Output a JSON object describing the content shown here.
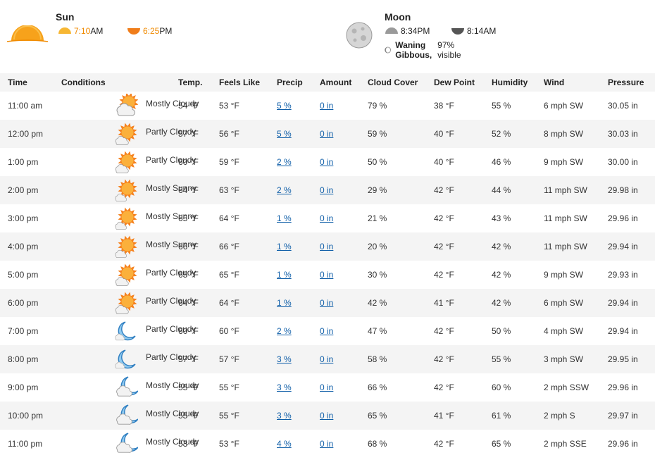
{
  "sun": {
    "title": "Sun",
    "rise_time": "7:10",
    "rise_ampm": "AM",
    "set_time": "6:25",
    "set_ampm": "PM",
    "icon": "sun-icon"
  },
  "moon": {
    "title": "Moon",
    "rise": "8:34PM",
    "set": "8:14AM",
    "phase_name": "Waning Gibbous,",
    "phase_visible": "97% visible",
    "icon": "moon-icon"
  },
  "colors": {
    "sun_orange": "#f08a00",
    "link_blue": "#0f5ea8",
    "row_alt": "#f4f4f4",
    "moon_blue": "#5aa9e6"
  },
  "table": {
    "headers": [
      "Time",
      "Conditions",
      "Temp.",
      "Feels Like",
      "Precip",
      "Amount",
      "Cloud Cover",
      "Dew Point",
      "Humidity",
      "Wind",
      "Pressure"
    ],
    "rows": [
      {
        "time": "11:00 am",
        "icon": "cloudy-sun-icon",
        "cond": "Mostly Cloudy",
        "temp": "54 °F",
        "feels": "53 °F",
        "precip": "5 %",
        "amount": "0 in",
        "cloud": "79 %",
        "dew": "38 °F",
        "hum": "55 %",
        "wind": "6 mph SW",
        "press": "30.05 in"
      },
      {
        "time": "12:00 pm",
        "icon": "partly-sunny-icon",
        "cond": "Partly Cloudy",
        "temp": "57 °F",
        "feels": "56 °F",
        "precip": "5 %",
        "amount": "0 in",
        "cloud": "59 %",
        "dew": "40 °F",
        "hum": "52 %",
        "wind": "8 mph SW",
        "press": "30.03 in"
      },
      {
        "time": "1:00 pm",
        "icon": "partly-sunny-icon",
        "cond": "Partly Cloudy",
        "temp": "60 °F",
        "feels": "59 °F",
        "precip": "2 %",
        "amount": "0 in",
        "cloud": "50 %",
        "dew": "40 °F",
        "hum": "46 %",
        "wind": "9 mph SW",
        "press": "30.00 in"
      },
      {
        "time": "2:00 pm",
        "icon": "mostly-sunny-icon",
        "cond": "Mostly Sunny",
        "temp": "64 °F",
        "feels": "63 °F",
        "precip": "2 %",
        "amount": "0 in",
        "cloud": "29 %",
        "dew": "42 °F",
        "hum": "44 %",
        "wind": "11 mph SW",
        "press": "29.98 in"
      },
      {
        "time": "3:00 pm",
        "icon": "mostly-sunny-icon",
        "cond": "Mostly Sunny",
        "temp": "65 °F",
        "feels": "64 °F",
        "precip": "1 %",
        "amount": "0 in",
        "cloud": "21 %",
        "dew": "42 °F",
        "hum": "43 %",
        "wind": "11 mph SW",
        "press": "29.96 in"
      },
      {
        "time": "4:00 pm",
        "icon": "mostly-sunny-icon",
        "cond": "Mostly Sunny",
        "temp": "66 °F",
        "feels": "66 °F",
        "precip": "1 %",
        "amount": "0 in",
        "cloud": "20 %",
        "dew": "42 °F",
        "hum": "42 %",
        "wind": "11 mph SW",
        "press": "29.94 in"
      },
      {
        "time": "5:00 pm",
        "icon": "partly-sunny-icon",
        "cond": "Partly Cloudy",
        "temp": "65 °F",
        "feels": "65 °F",
        "precip": "1 %",
        "amount": "0 in",
        "cloud": "30 %",
        "dew": "42 °F",
        "hum": "42 %",
        "wind": "9 mph SW",
        "press": "29.93 in"
      },
      {
        "time": "6:00 pm",
        "icon": "partly-sunny-icon",
        "cond": "Partly Cloudy",
        "temp": "64 °F",
        "feels": "64 °F",
        "precip": "1 %",
        "amount": "0 in",
        "cloud": "42 %",
        "dew": "41 °F",
        "hum": "42 %",
        "wind": "6 mph SW",
        "press": "29.94 in"
      },
      {
        "time": "7:00 pm",
        "icon": "partly-cloudy-night-icon",
        "cond": "Partly Cloudy",
        "temp": "60 °F",
        "feels": "60 °F",
        "precip": "2 %",
        "amount": "0 in",
        "cloud": "47 %",
        "dew": "42 °F",
        "hum": "50 %",
        "wind": "4 mph SW",
        "press": "29.94 in"
      },
      {
        "time": "8:00 pm",
        "icon": "partly-cloudy-night-icon",
        "cond": "Partly Cloudy",
        "temp": "57 °F",
        "feels": "57 °F",
        "precip": "3 %",
        "amount": "0 in",
        "cloud": "58 %",
        "dew": "42 °F",
        "hum": "55 %",
        "wind": "3 mph SW",
        "press": "29.95 in"
      },
      {
        "time": "9:00 pm",
        "icon": "mostly-cloudy-night-icon",
        "cond": "Mostly Cloudy",
        "temp": "55 °F",
        "feels": "55 °F",
        "precip": "3 %",
        "amount": "0 in",
        "cloud": "66 %",
        "dew": "42 °F",
        "hum": "60 %",
        "wind": "2 mph SSW",
        "press": "29.96 in"
      },
      {
        "time": "10:00 pm",
        "icon": "mostly-cloudy-night-icon",
        "cond": "Mostly Cloudy",
        "temp": "55 °F",
        "feels": "55 °F",
        "precip": "3 %",
        "amount": "0 in",
        "cloud": "65 %",
        "dew": "41 °F",
        "hum": "61 %",
        "wind": "2 mph S",
        "press": "29.97 in"
      },
      {
        "time": "11:00 pm",
        "icon": "mostly-cloudy-night-icon",
        "cond": "Mostly Cloudy",
        "temp": "53 °F",
        "feels": "53 °F",
        "precip": "4 %",
        "amount": "0 in",
        "cloud": "68 %",
        "dew": "42 °F",
        "hum": "65 %",
        "wind": "2 mph SSE",
        "press": "29.96 in"
      }
    ]
  }
}
